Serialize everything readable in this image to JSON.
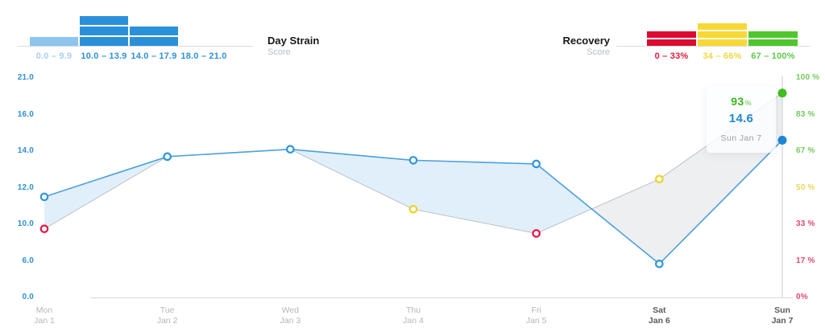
{
  "header": {
    "strain": {
      "title": "Day Strain",
      "subtitle": "Score",
      "bins": [
        {
          "label": "0.0 – 9.9",
          "segments": 1,
          "muted": true
        },
        {
          "label": "10.0 – 13.9",
          "segments": 3,
          "muted": false
        },
        {
          "label": "14.0 – 17.9",
          "segments": 2,
          "muted": false
        },
        {
          "label": "18.0 – 21.0",
          "segments": 0,
          "muted": false
        }
      ]
    },
    "recovery": {
      "title": "Recovery",
      "subtitle": "Score",
      "bins": [
        {
          "label": "0 – 33%",
          "zone": "red",
          "segments": 2
        },
        {
          "label": "34 – 66%",
          "zone": "yellow",
          "segments": 3
        },
        {
          "label": "67 – 100%",
          "zone": "green",
          "segments": 2
        }
      ]
    }
  },
  "chart_data": {
    "type": "line",
    "series": [
      {
        "name": "Day Strain",
        "values": [
          11.5,
          13.7,
          14.1,
          13.5,
          13.3,
          5.5,
          14.6
        ]
      },
      {
        "name": "Recovery",
        "values": [
          31,
          null,
          null,
          40,
          29,
          54,
          93
        ]
      }
    ],
    "days": [
      {
        "day": "Mon",
        "date": "Jan 1",
        "weekend": false,
        "selected": false
      },
      {
        "day": "Tue",
        "date": "Jan 2",
        "weekend": false,
        "selected": false
      },
      {
        "day": "Wed",
        "date": "Jan 3",
        "weekend": false,
        "selected": false
      },
      {
        "day": "Thu",
        "date": "Jan 4",
        "weekend": false,
        "selected": false
      },
      {
        "day": "Fri",
        "date": "Jan 5",
        "weekend": true,
        "selected": false
      },
      {
        "day": "Sat",
        "date": "Jan 6",
        "weekend": true,
        "selected": false
      },
      {
        "day": "Sun",
        "date": "Jan 7",
        "weekend": true,
        "selected": true
      }
    ],
    "left_axis": {
      "tick_labels": [
        "21.0",
        "16.0",
        "14.0",
        "12.0",
        "10.0",
        "6.0",
        "0.0"
      ],
      "tick_values": [
        21,
        16,
        14,
        12,
        10,
        6,
        0
      ]
    },
    "right_axis": {
      "tick_labels": [
        "100 %",
        "83 %",
        "67 %",
        "50 %",
        "33 %",
        "17 %",
        "0%"
      ],
      "tick_values": [
        100,
        83,
        67,
        50,
        33,
        17,
        0
      ]
    },
    "grid": false,
    "legend_position": "top"
  },
  "tooltip": {
    "recovery_value": "93",
    "recovery_unit": "%",
    "strain_value": "14.6",
    "date_label": "Sun  Jan 7"
  },
  "colors": {
    "strain_bar": "#2b90da",
    "strain_bar_muted": "#8ec4ed",
    "strain_label": "#2f90d9",
    "strain_label_muted": "#aacff0",
    "red": "#dc0a32",
    "yellow": "#f8d835",
    "green": "#4fc62c",
    "label_red": "#e11a3f",
    "label_yellow": "#ecd93f",
    "label_green": "#5ec948",
    "line_blue": "#4ba0dd",
    "line_gray": "#bcc2c7",
    "fill_blue": "rgba(132,190,235,0.25)",
    "fill_gray": "rgba(168,176,181,0.20)",
    "dot_blue": "#1e88d2",
    "dot_green": "#3fbf20",
    "ring_blue": "#2e96dd",
    "ring_red": "#ea1240",
    "ring_yellow": "#eed31f",
    "axis_line": "#d9dcde",
    "tick_left": "#2e8fd8",
    "tick_green": "#74c95d",
    "tick_yellow": "#e8d75b",
    "tick_red": "#e4486b",
    "day_label": "#b2b7bb",
    "day_label_dark": "#565c61"
  }
}
